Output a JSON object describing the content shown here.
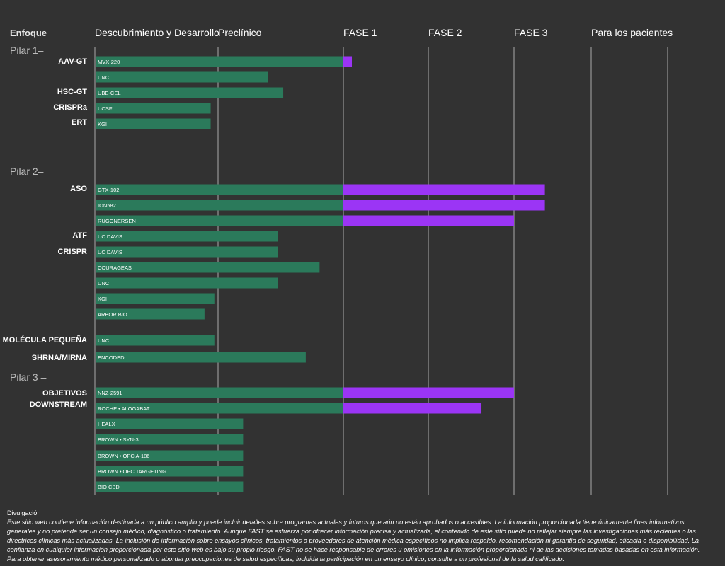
{
  "colors": {
    "background": "#323232",
    "preclinical": "#2b7a5b",
    "clinical": "#9b35f5",
    "gridline": "#c8c8c8"
  },
  "header": {
    "enfoque": "Enfoque",
    "columns": [
      "Descubrimiento y Desarrollo",
      "Preclínico",
      "FASE 1",
      "FASE 2",
      "FASE 3",
      "Para los pacientes"
    ]
  },
  "chart_data": {
    "type": "bar",
    "orientation": "horizontal-gantt",
    "stage_boundaries": [
      "Descubrimiento y Desarrollo",
      "Preclínico",
      "FASE 1",
      "FASE 2",
      "FASE 3",
      "Para los pacientes"
    ],
    "x_unit": "stage progress (0 = start of Descubrimiento y Desarrollo, 1 = start of Preclínico, 2 = start of FASE 1, 3 = start of FASE 2, 4 = start of FASE 3, 5 = start of Para los pacientes)",
    "pillars": [
      {
        "label": "Pilar 1–",
        "groups": [
          {
            "label": "AAV-GT",
            "bars": [
              {
                "label": "MVX-220",
                "end": 2.1
              },
              {
                "label": "UNC",
                "end": 1.4
              }
            ]
          },
          {
            "label": "HSC-GT",
            "bars": [
              {
                "label": "UBE-CEL",
                "end": 1.52
              }
            ]
          },
          {
            "label": "CRISPRa",
            "bars": [
              {
                "label": "UCSF",
                "end": 0.94
              }
            ]
          },
          {
            "label": "ERT",
            "bars": [
              {
                "label": "KGI",
                "end": 0.94
              }
            ]
          }
        ]
      },
      {
        "label": "Pilar 2–",
        "groups": [
          {
            "label": "ASO",
            "bars": [
              {
                "label": "GTX-102",
                "end": 4.4
              },
              {
                "label": "ION582",
                "end": 4.4
              },
              {
                "label": "RUGONERSEN",
                "end": 4.0
              }
            ]
          },
          {
            "label": "ATF",
            "bars": [
              {
                "label": "UC DAVIS",
                "end": 1.48
              }
            ]
          },
          {
            "label": "CRISPR",
            "bars": [
              {
                "label": "UC DAVIS",
                "end": 1.48
              },
              {
                "label": "COURAGEAS",
                "end": 1.81
              },
              {
                "label": "UNC",
                "end": 1.48
              },
              {
                "label": "KGI",
                "end": 0.97
              },
              {
                "label": "ARBOR BIO",
                "end": 0.89
              }
            ]
          },
          {
            "label": "MOLÉCULA PEQUEÑA",
            "bars": [
              {
                "label": "UNC",
                "end": 0.97
              }
            ]
          },
          {
            "label": "SHRNA/MIRNA",
            "bars": [
              {
                "label": "ENCODED",
                "end": 1.7
              }
            ]
          }
        ]
      },
      {
        "label": "Pilar 3 –",
        "groups": [
          {
            "label": "OBJETIVOS DOWNSTREAM",
            "bars": [
              {
                "label": "NNZ-2591",
                "end": 4.0
              },
              {
                "label": "ROCHE • ALOGABAT",
                "end": 3.62
              },
              {
                "label": "HEALX",
                "end": 1.2
              },
              {
                "label": "BROWN • SYN-3",
                "end": 1.2
              },
              {
                "label": "BROWN • OPC A-186",
                "end": 1.2
              },
              {
                "label": "BROWN • OPC TARGETING",
                "end": 1.2
              },
              {
                "label": "BIO CBD",
                "end": 1.2
              }
            ]
          }
        ]
      }
    ]
  },
  "disclaimer": {
    "title": "Divulgación",
    "text": "Este sitio web contiene información destinada a un público amplio y puede incluir detalles sobre programas actuales y futuros que aún no están aprobados o accesibles. La información proporcionada tiene únicamente fines informativos generales y no pretende ser un consejo médico, diagnóstico o tratamiento. Aunque FAST se esfuerza por ofrecer información precisa y actualizada, el contenido de este sitio puede no reflejar siempre las investigaciones más recientes o las directrices clínicas más actualizadas. La inclusión de información sobre ensayos clínicos, tratamientos o proveedores de atención médica específicos no implica respaldo, recomendación ni garantía de seguridad, eficacia o disponibilidad. La confianza en cualquier información proporcionada por este sitio web es bajo su propio riesgo. FAST no se hace responsable de errores u omisiones en la información proporcionada ni de las decisiones tomadas basadas en esta información. Para obtener asesoramiento médico personalizado o abordar preocupaciones de salud específicas, incluida la participación en un ensayo clínico, consulte a un profesional de la salud calificado."
  }
}
